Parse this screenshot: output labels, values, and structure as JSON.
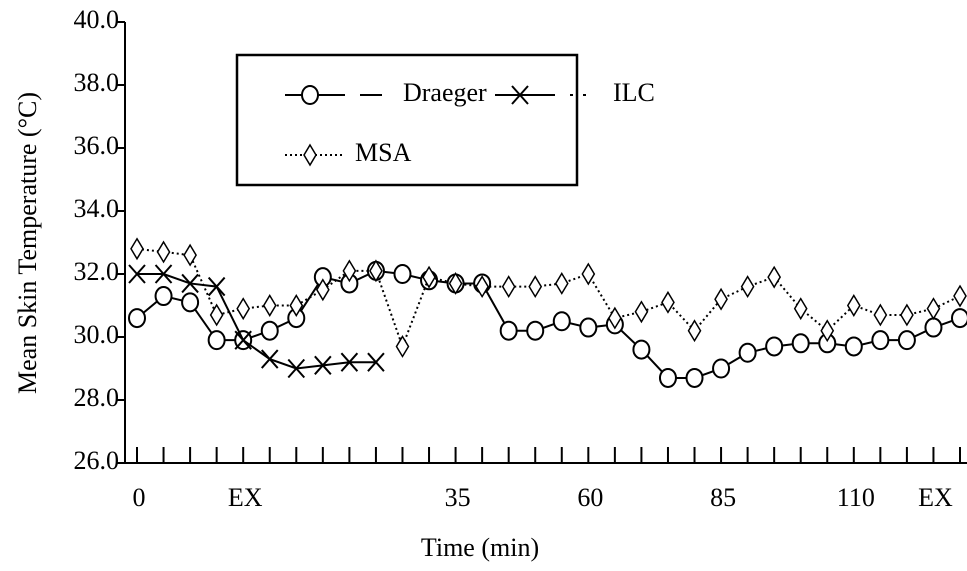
{
  "chart_data": {
    "type": "line",
    "xlabel": "Time (min)",
    "ylabel": "Mean Skin Temperature (°C)",
    "categories": [
      "0",
      null,
      null,
      null,
      "EX",
      null,
      null,
      null,
      null,
      null,
      null,
      null,
      "35",
      null,
      null,
      null,
      null,
      "60",
      null,
      null,
      null,
      null,
      "85",
      null,
      null,
      null,
      null,
      "110",
      null,
      null,
      "EX",
      null
    ],
    "ylim": [
      26,
      40
    ],
    "yticks": [
      {
        "value": 26,
        "label": "26.0"
      },
      {
        "value": 28,
        "label": "28.0"
      },
      {
        "value": 30,
        "label": "30.0"
      },
      {
        "value": 32,
        "label": "32.0"
      },
      {
        "value": 34,
        "label": "34.0"
      },
      {
        "value": 36,
        "label": "36.0"
      },
      {
        "value": 38,
        "label": "38.0"
      },
      {
        "value": 40,
        "label": "40.0"
      }
    ],
    "series": [
      {
        "name": "Draeger",
        "color": "#000000",
        "marker": "circle",
        "line": "solid",
        "values": [
          30.6,
          31.3,
          31.1,
          29.9,
          29.9,
          30.2,
          30.6,
          31.9,
          31.7,
          32.1,
          32.0,
          31.8,
          31.7,
          31.7,
          30.2,
          30.2,
          30.5,
          30.3,
          30.4,
          29.6,
          28.7,
          28.7,
          29.0,
          29.5,
          29.7,
          29.8,
          29.8,
          29.7,
          29.9,
          29.9,
          30.3,
          30.6
        ]
      },
      {
        "name": "ILC",
        "color": "#000000",
        "marker": "x",
        "line": "solid",
        "values": [
          32.0,
          32.0,
          31.7,
          31.6,
          29.9,
          29.3,
          29.0,
          29.1,
          29.2,
          29.2,
          null,
          null,
          null,
          null,
          null,
          null,
          null,
          null,
          null,
          null,
          null,
          null,
          null,
          null,
          null,
          null,
          null,
          null,
          null,
          null,
          null,
          null
        ]
      },
      {
        "name": "MSA",
        "color": "#000000",
        "marker": "diamond",
        "line": "dotted",
        "values": [
          32.8,
          32.7,
          32.6,
          30.7,
          30.9,
          31.0,
          31.0,
          31.5,
          32.1,
          32.1,
          29.7,
          31.9,
          31.7,
          31.6,
          31.6,
          31.6,
          31.7,
          32.0,
          30.6,
          30.8,
          31.1,
          30.2,
          31.2,
          31.6,
          31.9,
          30.9,
          30.2,
          31.0,
          30.7,
          30.7,
          30.9,
          31.3
        ]
      }
    ]
  }
}
